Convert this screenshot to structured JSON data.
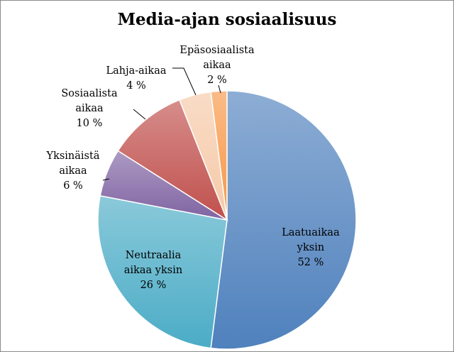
{
  "chart_data": {
    "type": "pie",
    "title": "Media-ajan sosiaalisuus",
    "slices": [
      {
        "label": [
          "Laatuaikaa",
          "yksin"
        ],
        "value_label": "52 %",
        "value": 52,
        "color": "#4F81BD"
      },
      {
        "label": [
          "Neutraalia",
          "aikaa yksin"
        ],
        "value_label": "26 %",
        "value": 26,
        "color": "#4BACC6"
      },
      {
        "label": [
          "Yksinäistä",
          "aikaa"
        ],
        "value_label": "6 %",
        "value": 6,
        "color": "#8064A2"
      },
      {
        "label": [
          "Sosiaalista",
          "aikaa"
        ],
        "value_label": "10 %",
        "value": 10,
        "color": "#C0504D"
      },
      {
        "label": [
          "Lahja-aikaa"
        ],
        "value_label": "4 %",
        "value": 4,
        "color": "#F5C9A8"
      },
      {
        "label": [
          "Epäsosiaalista",
          "aikaa"
        ],
        "value_label": "2 %",
        "value": 2,
        "color": "#F79646"
      }
    ],
    "start_angle_deg": 0,
    "direction": "clockwise",
    "legend": "none",
    "data_labels": "outside with leader lines for small slices"
  }
}
